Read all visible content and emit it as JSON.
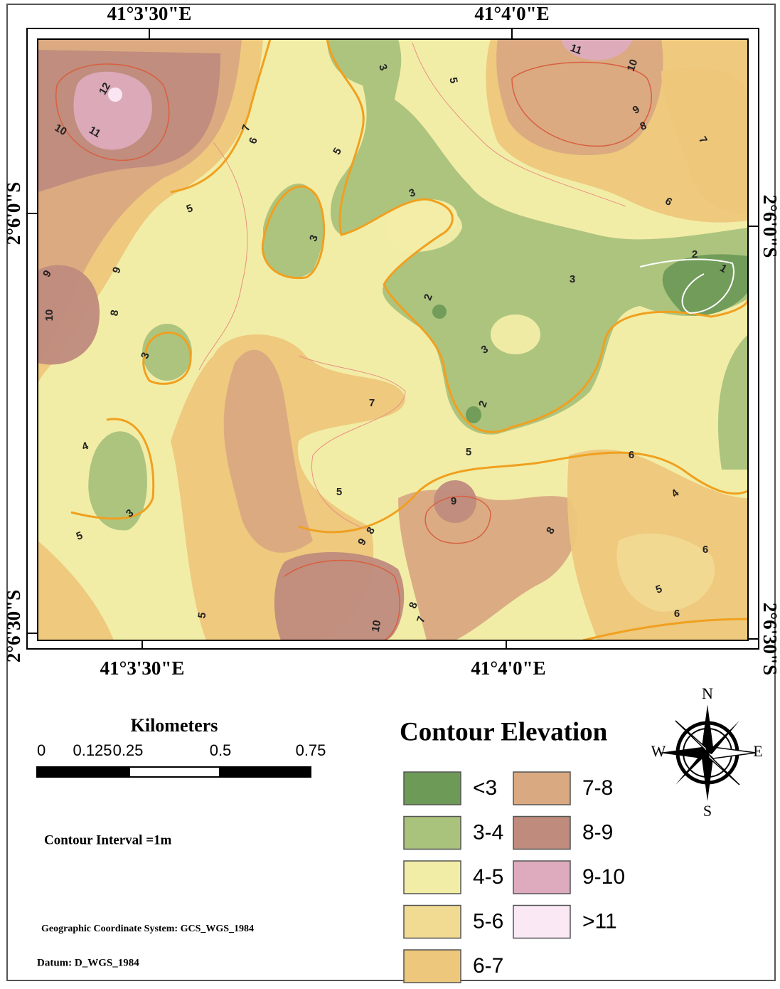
{
  "coordinates": {
    "top": [
      "41°3'30\"E",
      "41°4'0\"E"
    ],
    "bottom": [
      "41°3'30\"E",
      "41°4'0\"E"
    ],
    "left": [
      "2°6'0\"S",
      "2°6'30\"S"
    ],
    "right": [
      "2°6'0\"S",
      "2°6'30\"S"
    ]
  },
  "contour_labels": [
    "3",
    "5",
    "11",
    "10",
    "12",
    "10",
    "11",
    "7",
    "6",
    "5",
    "9",
    "8",
    "7",
    "3",
    "5",
    "6",
    "3",
    "2",
    "1",
    "9",
    "9",
    "3",
    "2",
    "10",
    "8",
    "3",
    "3",
    "7",
    "2",
    "4",
    "5",
    "6",
    "5",
    "4",
    "9",
    "3",
    "8",
    "9",
    "8",
    "5",
    "6",
    "5",
    "8",
    "5",
    "6",
    "7",
    "10"
  ],
  "scale_bar": {
    "title": "Kilometers",
    "labels": [
      "0",
      "0.125",
      "0.25",
      "0.5",
      "0.75"
    ]
  },
  "notes": {
    "interval": "Contour Interval =1m",
    "coordinate_system": "Geographic Coordinate System: GCS_WGS_1984",
    "datum": "Datum: D_WGS_1984"
  },
  "legend": {
    "title": "Contour Elevation",
    "items": [
      {
        "label": "<3",
        "color": "#6e9a58"
      },
      {
        "label": "3-4",
        "color": "#a9c27c"
      },
      {
        "label": "4-5",
        "color": "#f2eda6"
      },
      {
        "label": "5-6",
        "color": "#f1da92"
      },
      {
        "label": "6-7",
        "color": "#edc77b"
      },
      {
        "label": "7-8",
        "color": "#d9a982"
      },
      {
        "label": "8-9",
        "color": "#bf8b7d"
      },
      {
        "label": "9-10",
        "color": "#ddabbd"
      },
      {
        "label": ">11",
        "color": "#fbe8f5"
      }
    ]
  },
  "compass": {
    "n": "N",
    "s": "S",
    "w": "W",
    "e": "E"
  }
}
